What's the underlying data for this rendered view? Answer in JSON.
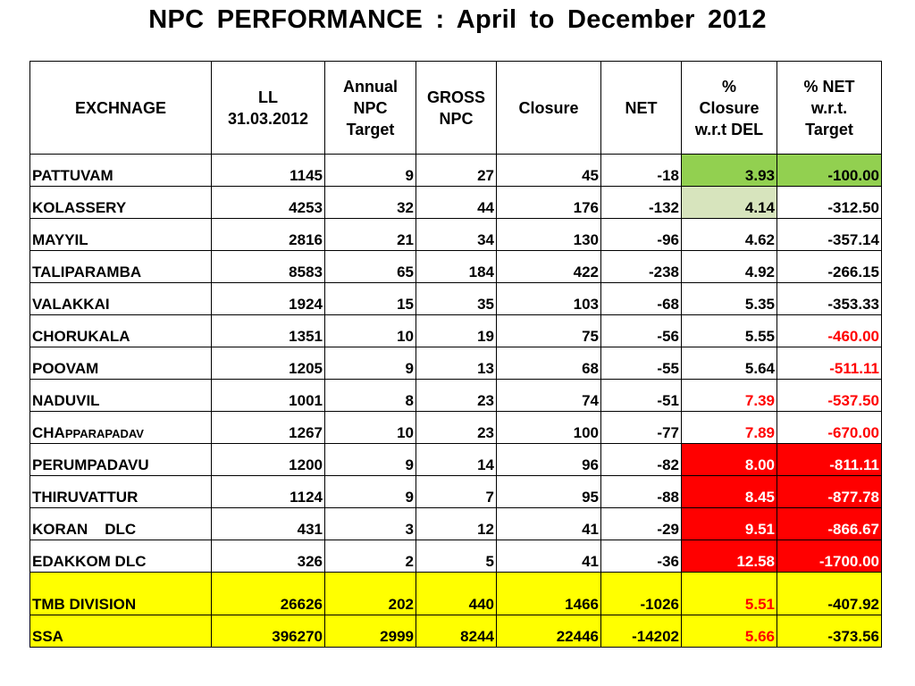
{
  "title": "NPC  PERFORMANCE  :  April  to  December  2012",
  "headers": {
    "exchange": "EXCHNAGE",
    "ll_line1": "LL",
    "ll_line2": "31.03.2012",
    "target_line1": "Annual",
    "target_line2": "NPC",
    "target_line3": "Target",
    "gross_line1": "GROSS",
    "gross_line2": "NPC",
    "closure": "Closure",
    "net": "NET",
    "pct_closure_line1": "%",
    "pct_closure_line2": "Closure",
    "pct_closure_line3": "w.r.t DEL",
    "pct_net_line1": "% NET",
    "pct_net_line2": "w.r.t.",
    "pct_net_line3": "Target"
  },
  "rows": [
    {
      "exchange": "PATTUVAM",
      "ll": "1145",
      "target": "9",
      "gross": "27",
      "closure": "45",
      "net": "-18",
      "pct_closure": "3.93",
      "pct_net": "-100.00"
    },
    {
      "exchange": "KOLASSERY",
      "ll": "4253",
      "target": "32",
      "gross": "44",
      "closure": "176",
      "net": "-132",
      "pct_closure": "4.14",
      "pct_net": "-312.50"
    },
    {
      "exchange": "MAYYIL",
      "ll": "2816",
      "target": "21",
      "gross": "34",
      "closure": "130",
      "net": "-96",
      "pct_closure": "4.62",
      "pct_net": "-357.14"
    },
    {
      "exchange": "TALIPARAMBA",
      "ll": "8583",
      "target": "65",
      "gross": "184",
      "closure": "422",
      "net": "-238",
      "pct_closure": "4.92",
      "pct_net": "-266.15"
    },
    {
      "exchange": "VALAKKAI",
      "ll": "1924",
      "target": "15",
      "gross": "35",
      "closure": "103",
      "net": "-68",
      "pct_closure": "5.35",
      "pct_net": "-353.33"
    },
    {
      "exchange": "CHORUKALA",
      "ll": "1351",
      "target": "10",
      "gross": "19",
      "closure": "75",
      "net": "-56",
      "pct_closure": "5.55",
      "pct_net": "-460.00"
    },
    {
      "exchange": "POOVAM",
      "ll": "1205",
      "target": "9",
      "gross": "13",
      "closure": "68",
      "net": "-55",
      "pct_closure": "5.64",
      "pct_net": "-511.11"
    },
    {
      "exchange": "NADUVIL",
      "ll": "1001",
      "target": "8",
      "gross": "23",
      "closure": "74",
      "net": "-51",
      "pct_closure": "7.39",
      "pct_net": "-537.50"
    },
    {
      "exchange_prefix": "CHA",
      "exchange_suffix": "PPARAPADAV",
      "ll": "1267",
      "target": "10",
      "gross": "23",
      "closure": "100",
      "net": "-77",
      "pct_closure": "7.89",
      "pct_net": "-670.00"
    },
    {
      "exchange": "PERUMPADAVU",
      "ll": "1200",
      "target": "9",
      "gross": "14",
      "closure": "96",
      "net": "-82",
      "pct_closure": "8.00",
      "pct_net": "-811.11"
    },
    {
      "exchange": "THIRUVATTUR",
      "ll": "1124",
      "target": "9",
      "gross": "7",
      "closure": "95",
      "net": "-88",
      "pct_closure": "8.45",
      "pct_net": "-877.78"
    },
    {
      "exchange": "KORAN    DLC",
      "ll": "431",
      "target": "3",
      "gross": "12",
      "closure": "41",
      "net": "-29",
      "pct_closure": "9.51",
      "pct_net": "-866.67"
    },
    {
      "exchange": "EDAKKOM DLC",
      "ll": "326",
      "target": "2",
      "gross": "5",
      "closure": "41",
      "net": "-36",
      "pct_closure": "12.58",
      "pct_net": "-1700.00"
    }
  ],
  "totals": [
    {
      "exchange": "TMB DIVISION",
      "ll": "26626",
      "target": "202",
      "gross": "440",
      "closure": "1466",
      "net": "-1026",
      "pct_closure": "5.51",
      "pct_net": "-407.92"
    },
    {
      "exchange": "SSA",
      "ll": "396270",
      "target": "2999",
      "gross": "8244",
      "closure": "22446",
      "net": "-14202",
      "pct_closure": "5.66",
      "pct_net": "-373.56"
    }
  ],
  "colors": {
    "bright_green": "#92d050",
    "pale_green": "#d7e4bd",
    "alert_red": "#ff0000",
    "total_yellow": "#ffff00"
  }
}
